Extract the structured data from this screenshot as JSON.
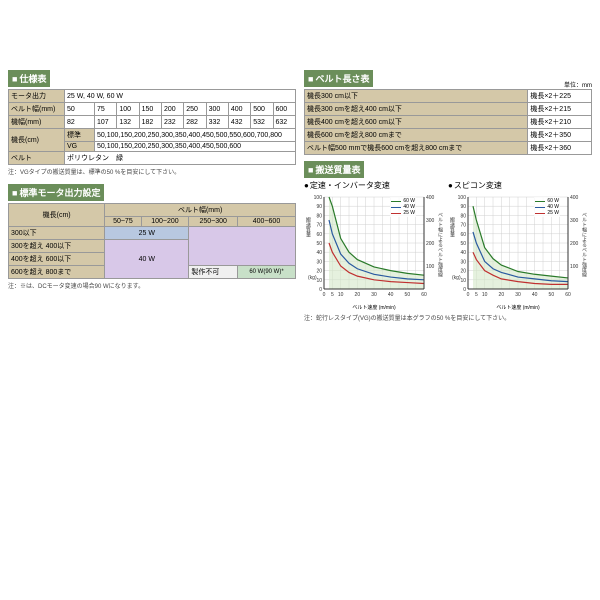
{
  "spec_table": {
    "title": "仕様表",
    "rows": [
      {
        "label": "モータ出力",
        "value": "25 W, 40 W, 60 W"
      },
      {
        "label": "ベルト幅(mm)",
        "cells": [
          "50",
          "75",
          "100",
          "150",
          "200",
          "250",
          "300",
          "400",
          "500",
          "600"
        ]
      },
      {
        "label": "機幅(mm)",
        "cells": [
          "82",
          "107",
          "132",
          "182",
          "232",
          "282",
          "332",
          "432",
          "532",
          "632"
        ]
      },
      {
        "label": "機長(cm)",
        "sublabel1": "標準",
        "value1": "50,100,150,200,250,300,350,400,450,500,550,600,700,800",
        "sublabel2": "VG",
        "value2": "50,100,150,200,250,300,350,400,450,500,600"
      },
      {
        "label": "ベルト",
        "value": "ポリウレタン　緑"
      }
    ],
    "note": "注：VGタイプの搬送質量は、標準の50 %を目安にして下さい。"
  },
  "motor_table": {
    "title": "標準モータ出力設定",
    "row_header": "機長(cm)",
    "col_header": "ベルト幅(mm)",
    "cols": [
      "50~75",
      "100~200",
      "250~300",
      "400~600"
    ],
    "rows": [
      "300以下",
      "300を超え 400以下",
      "400を超え 600以下",
      "600を超え 800まで"
    ],
    "w25": "25 W",
    "w40": "40 W",
    "w60": "60 W(90 W)*",
    "na": "製作不可",
    "note": "注：※は、DCモータ変速の場合90 Wになります。"
  },
  "length_table": {
    "title": "ベルト長さ表",
    "unit": "単位：mm",
    "rows": [
      {
        "label": "機長300 cm以下",
        "value": "機長×2＋225"
      },
      {
        "label": "機長300 cmを超え400 cm以下",
        "value": "機長×2＋215"
      },
      {
        "label": "機長400 cmを超え600 cm以下",
        "value": "機長×2＋210"
      },
      {
        "label": "機長600 cmを超え800 cmまで",
        "value": "機長×2＋350"
      },
      {
        "label": "ベルト幅500 mmで機長600 cmを超え800 cmまで",
        "value": "機長×2＋360"
      }
    ]
  },
  "charts": {
    "section_title": "搬送質量表",
    "chart1_title": "定速・インバータ変速",
    "chart2_title": "スピコン変速",
    "ylabel": "搬送質量",
    "yunit": "(kg)",
    "ylabel_r": "ベルト幅によるベルト強度線",
    "yunit_r": "(mm)",
    "xlabel": "ベルト速度 (m/min)",
    "xlim": [
      0,
      60
    ],
    "xtick_step": 5,
    "ylim": [
      0,
      100
    ],
    "ytick_step": 10,
    "ylim_r": [
      0,
      400
    ],
    "grid_color": "#d0d0d0",
    "area_fill": "#d4e8c8",
    "series": [
      {
        "name": "60 W",
        "color": "#2a7a2a"
      },
      {
        "name": "40 W",
        "color": "#2a5aa0"
      },
      {
        "name": "25 W",
        "color": "#c03030"
      }
    ],
    "chart1_data": {
      "60W": [
        [
          3,
          100
        ],
        [
          5,
          90
        ],
        [
          10,
          55
        ],
        [
          15,
          40
        ],
        [
          20,
          32
        ],
        [
          30,
          24
        ],
        [
          40,
          20
        ],
        [
          50,
          17
        ],
        [
          60,
          15
        ]
      ],
      "40W": [
        [
          3,
          75
        ],
        [
          5,
          60
        ],
        [
          10,
          38
        ],
        [
          15,
          28
        ],
        [
          20,
          22
        ],
        [
          30,
          16
        ],
        [
          40,
          13
        ],
        [
          50,
          11
        ],
        [
          60,
          10
        ]
      ],
      "25W": [
        [
          3,
          50
        ],
        [
          5,
          40
        ],
        [
          10,
          25
        ],
        [
          15,
          18
        ],
        [
          20,
          14
        ],
        [
          30,
          10
        ],
        [
          40,
          8
        ],
        [
          50,
          7
        ],
        [
          60,
          6
        ]
      ]
    },
    "chart2_data": {
      "60W": [
        [
          3,
          90
        ],
        [
          5,
          75
        ],
        [
          10,
          45
        ],
        [
          15,
          33
        ],
        [
          20,
          26
        ],
        [
          30,
          19
        ],
        [
          40,
          16
        ],
        [
          50,
          14
        ],
        [
          60,
          12
        ]
      ],
      "40W": [
        [
          3,
          62
        ],
        [
          5,
          50
        ],
        [
          10,
          30
        ],
        [
          15,
          22
        ],
        [
          20,
          18
        ],
        [
          30,
          13
        ],
        [
          40,
          11
        ],
        [
          50,
          9
        ],
        [
          60,
          8
        ]
      ],
      "25W": [
        [
          3,
          40
        ],
        [
          5,
          32
        ],
        [
          10,
          20
        ],
        [
          15,
          15
        ],
        [
          20,
          11
        ],
        [
          30,
          8
        ],
        [
          40,
          6
        ],
        [
          50,
          5
        ],
        [
          60,
          5
        ]
      ]
    },
    "note": "注：蛇行レスタイプ(VG)の搬送質量は本グラフの50 %を目安にして下さい。"
  }
}
